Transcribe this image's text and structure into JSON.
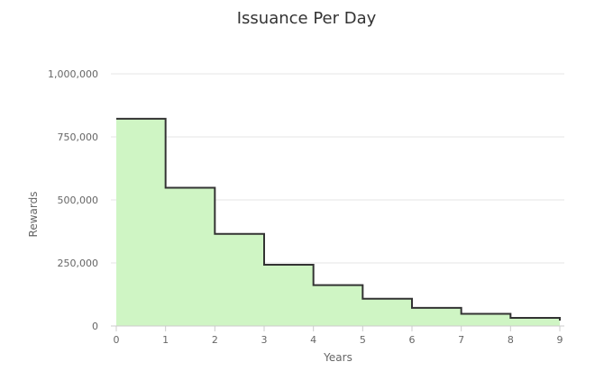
{
  "chart_data": {
    "type": "area",
    "step": true,
    "title": "Issuance Per Day",
    "xlabel": "Years",
    "ylabel": "Rewards",
    "x": [
      0,
      1,
      2,
      3,
      4,
      5,
      6,
      7,
      8,
      9
    ],
    "series": [
      {
        "values": [
          822000,
          548000,
          365000,
          243000,
          162000,
          108000,
          72000,
          48000,
          32000,
          27000
        ]
      }
    ],
    "xlim": [
      0,
      9
    ],
    "ylim": [
      0,
      1000000
    ],
    "xticks": [
      0,
      1,
      2,
      3,
      4,
      5,
      6,
      7,
      8,
      9
    ],
    "xtick_labels": [
      "0",
      "1",
      "2",
      "3",
      "4",
      "5",
      "6",
      "7",
      "8",
      "9"
    ],
    "yticks": [
      0,
      250000,
      500000,
      750000,
      1000000
    ],
    "ytick_labels": [
      "0",
      "250,000",
      "500,000",
      "750,000",
      "1,000,000"
    ],
    "grid": true,
    "colors": {
      "fill": "#cff5c4",
      "line": "#333333",
      "grid": "#e6e6e6"
    }
  }
}
